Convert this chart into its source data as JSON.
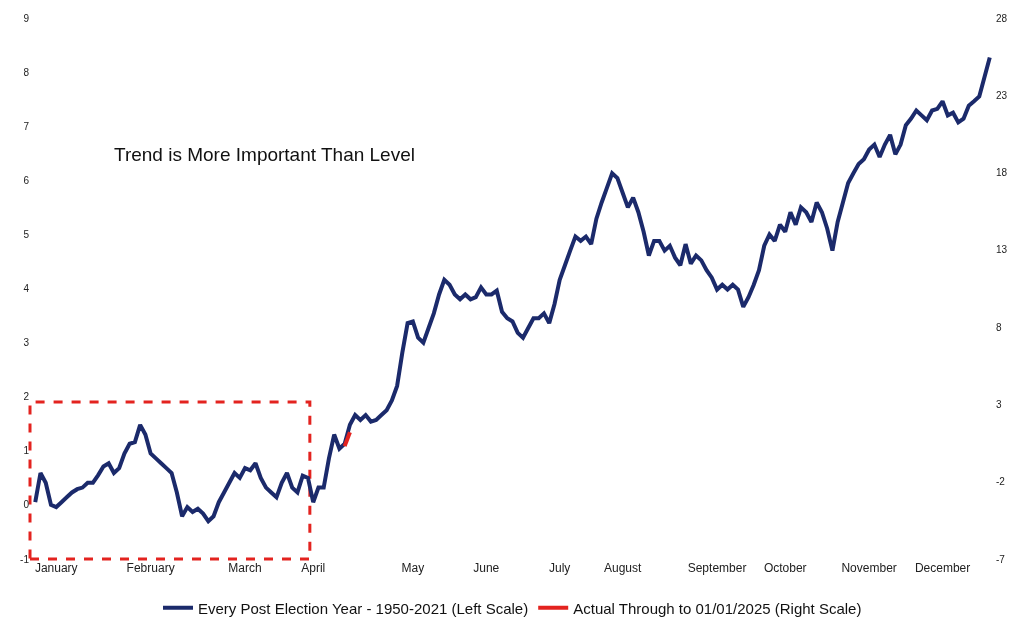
{
  "chart_data": {
    "type": "line",
    "annotations": [
      "Trend is More Important Than Level"
    ],
    "categories": [
      null,
      null,
      null,
      null,
      "January",
      null,
      null,
      null,
      null,
      null,
      null,
      null,
      null,
      null,
      null,
      null,
      null,
      null,
      null,
      null,
      null,
      null,
      "February",
      null,
      null,
      null,
      null,
      null,
      null,
      null,
      null,
      null,
      null,
      null,
      null,
      null,
      null,
      null,
      null,
      null,
      "March",
      null,
      null,
      null,
      null,
      null,
      null,
      null,
      null,
      null,
      null,
      null,
      null,
      "April",
      null,
      null,
      null,
      null,
      null,
      null,
      null,
      null,
      null,
      null,
      null,
      null,
      null,
      null,
      null,
      null,
      null,
      null,
      "May",
      null,
      null,
      null,
      null,
      null,
      null,
      null,
      null,
      null,
      null,
      null,
      null,
      null,
      "June",
      null,
      null,
      null,
      null,
      null,
      null,
      null,
      null,
      null,
      null,
      null,
      null,
      null,
      "July",
      null,
      null,
      null,
      null,
      null,
      null,
      null,
      null,
      null,
      null,
      null,
      "August",
      null,
      null,
      null,
      null,
      null,
      null,
      null,
      null,
      null,
      null,
      null,
      null,
      null,
      null,
      null,
      null,
      null,
      "September",
      null,
      null,
      null,
      null,
      null,
      null,
      null,
      null,
      null,
      null,
      null,
      null,
      "October",
      null,
      null,
      null,
      null,
      null,
      null,
      null,
      null,
      null,
      null,
      null,
      null,
      null,
      null,
      null,
      "November",
      null,
      null,
      null,
      null,
      null,
      null,
      null,
      null,
      null,
      null,
      null,
      null,
      null,
      "December",
      null,
      null,
      null,
      null,
      null,
      null,
      null,
      null,
      null
    ],
    "series": [
      {
        "name": "Every Post Election Year - 1950-2021 (Left Scale)",
        "color": "#1b2a6b",
        "values": [
          0.05,
          0.59,
          0.41,
          0.0,
          -0.04,
          0.05,
          0.14,
          0.23,
          0.29,
          0.32,
          0.41,
          0.41,
          0.55,
          0.71,
          0.77,
          0.59,
          0.68,
          0.95,
          1.13,
          1.16,
          1.48,
          1.3,
          0.95,
          0.86,
          0.77,
          0.68,
          0.59,
          0.23,
          -0.21,
          -0.04,
          -0.13,
          -0.07,
          -0.16,
          -0.3,
          -0.21,
          0.05,
          0.23,
          0.41,
          0.59,
          0.5,
          0.68,
          0.64,
          0.77,
          0.5,
          0.32,
          0.23,
          0.14,
          0.41,
          0.59,
          0.32,
          0.23,
          0.54,
          0.5,
          0.05,
          0.32,
          0.32,
          0.86,
          1.3,
          1.04,
          1.13,
          1.48,
          1.66,
          1.57,
          1.66,
          1.54,
          1.57,
          1.66,
          1.75,
          1.93,
          2.2,
          2.82,
          3.36,
          3.39,
          3.09,
          3.0,
          3.27,
          3.54,
          3.89,
          4.16,
          4.07,
          3.89,
          3.8,
          3.89,
          3.8,
          3.84,
          4.02,
          3.89,
          3.89,
          3.96,
          3.57,
          3.45,
          3.39,
          3.18,
          3.09,
          3.27,
          3.45,
          3.45,
          3.54,
          3.36,
          3.71,
          4.16,
          4.43,
          4.7,
          4.96,
          4.88,
          4.96,
          4.82,
          5.29,
          5.59,
          5.86,
          6.13,
          6.04,
          5.77,
          5.5,
          5.68,
          5.41,
          5.05,
          4.61,
          4.88,
          4.88,
          4.7,
          4.79,
          4.57,
          4.43,
          4.82,
          4.46,
          4.61,
          4.52,
          4.34,
          4.2,
          3.98,
          4.07,
          3.98,
          4.07,
          3.98,
          3.66,
          3.84,
          4.07,
          4.34,
          4.79,
          5.0,
          4.88,
          5.18,
          5.05,
          5.41,
          5.18,
          5.5,
          5.41,
          5.23,
          5.59,
          5.41,
          5.11,
          4.7,
          5.23,
          5.59,
          5.95,
          6.13,
          6.3,
          6.39,
          6.57,
          6.66,
          6.43,
          6.66,
          6.84,
          6.48,
          6.66,
          7.02,
          7.14,
          7.29,
          7.2,
          7.11,
          7.29,
          7.32,
          7.46,
          7.2,
          7.25,
          7.07,
          7.14,
          7.38,
          7.46,
          7.55,
          7.91,
          8.27
        ]
      },
      {
        "name": "Actual Through to 01/01/2025 (Right Scale)",
        "color": "#e3231f",
        "axis": "y2",
        "values": [
          null,
          null,
          null,
          null,
          null,
          null,
          null,
          null,
          null,
          null,
          null,
          null,
          null,
          null,
          null,
          null,
          null,
          null,
          null,
          null,
          null,
          null,
          null,
          null,
          null,
          null,
          null,
          null,
          null,
          null,
          null,
          null,
          null,
          null,
          null,
          null,
          null,
          null,
          null,
          null,
          null,
          null,
          null,
          null,
          null,
          null,
          null,
          null,
          null,
          null,
          null,
          null,
          null,
          null,
          null,
          null,
          null,
          null,
          null,
          0.3,
          1.2,
          null,
          null,
          null,
          null,
          null,
          null,
          null,
          null,
          null,
          null,
          null,
          null,
          null,
          null,
          null,
          null,
          null,
          null,
          null,
          null,
          null,
          null,
          null,
          null,
          null,
          null,
          null,
          null,
          null,
          null,
          null,
          null,
          null,
          null,
          null,
          null,
          null,
          null,
          null,
          null,
          null,
          null,
          null,
          null,
          null,
          null,
          null,
          null,
          null,
          null,
          null,
          null,
          null,
          null,
          null,
          null,
          null,
          null,
          null,
          null,
          null,
          null,
          null,
          null,
          null,
          null,
          null,
          null,
          null,
          null,
          null,
          null,
          null,
          null,
          null,
          null,
          null,
          null,
          null,
          null,
          null,
          null,
          null,
          null,
          null,
          null,
          null,
          null,
          null,
          null,
          null,
          null,
          null,
          null,
          null,
          null,
          null,
          null,
          null,
          null,
          null,
          null,
          null,
          null,
          null,
          null,
          null,
          null,
          null,
          null,
          null,
          null,
          null,
          null,
          null,
          null,
          null,
          null,
          null,
          null,
          null,
          null
        ]
      }
    ],
    "ylim": [
      -1,
      9
    ],
    "yticks": [
      -1,
      0,
      1,
      2,
      3,
      4,
      5,
      6,
      7,
      8,
      9
    ],
    "y2lim": [
      -7,
      28
    ],
    "y2ticks": [
      -7,
      -2,
      3,
      8,
      13,
      18,
      23,
      28
    ],
    "grid": false,
    "legend": "bottom",
    "marker": "none",
    "line_style": "solid"
  }
}
